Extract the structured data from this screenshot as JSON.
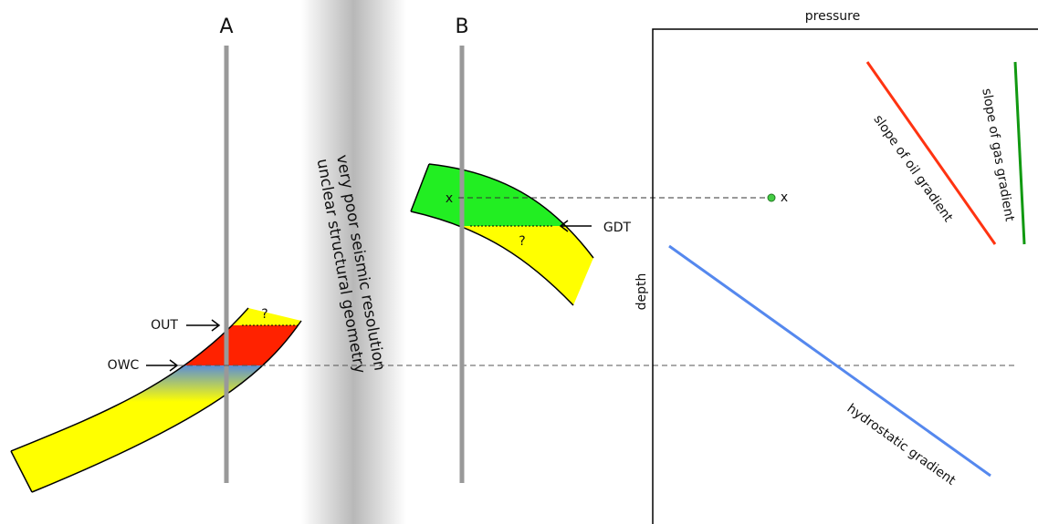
{
  "wells": [
    {
      "label": "A"
    },
    {
      "label": "B"
    }
  ],
  "seismic_note": [
    "very poor seismic resolution",
    "unclear structural geometry"
  ],
  "well_a": {
    "out": "OUT",
    "owc": "OWC",
    "unknown": "?"
  },
  "well_b": {
    "gdt": "GDT",
    "unknown": "?",
    "point": "x"
  },
  "plot": {
    "x_axis": "pressure",
    "y_axis": "depth",
    "point": "x",
    "lines": [
      "slope of oil gradient",
      "slope of gas gradient",
      "hydrostatic gradient"
    ]
  }
}
